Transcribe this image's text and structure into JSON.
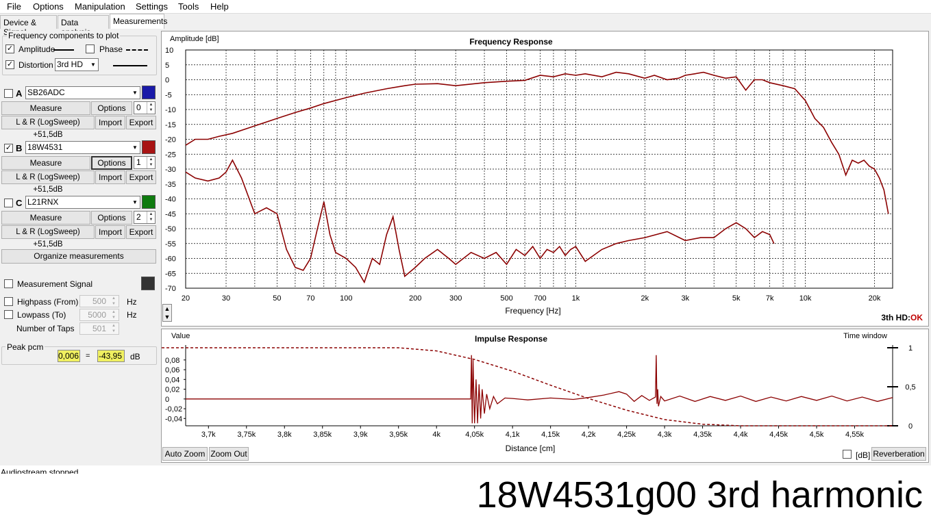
{
  "menu": [
    "File",
    "Options",
    "Manipulation",
    "Settings",
    "Tools",
    "Help"
  ],
  "tabs": [
    "Device & Signal",
    "Data analysis",
    "Measurements"
  ],
  "freq_components": {
    "title": "Frequency components to plot",
    "amplitude_label": "Amplitude",
    "amplitude_checked": "✓",
    "phase_label": "Phase",
    "distortion_label": "Distortion",
    "distortion_checked": "✓",
    "distortion_value": "3rd HD"
  },
  "measurements": [
    {
      "letter": "A",
      "checked": "",
      "name": "SB26ADC",
      "color": "#1a1aa8",
      "measure_label": "Measure",
      "options_label": "Options",
      "index": "0",
      "info": "L & R (LogSweep) +51,5dB",
      "import_label": "Import",
      "export_label": "Export"
    },
    {
      "letter": "B",
      "checked": "✓",
      "name": "18W4531",
      "color": "#a81414",
      "measure_label": "Measure",
      "options_label": "Options",
      "index": "1",
      "info": "L & R (LogSweep) +51,5dB",
      "import_label": "Import",
      "export_label": "Export"
    },
    {
      "letter": "C",
      "checked": "",
      "name": "L21RNX",
      "color": "#0e7a0e",
      "measure_label": "Measure",
      "options_label": "Options",
      "index": "2",
      "info": "L & R (LogSweep) +51,5dB",
      "import_label": "Import",
      "export_label": "Export"
    }
  ],
  "organize_label": "Organize measurements",
  "measurement_signal_label": "Measurement Signal",
  "measurement_signal_color": "#333333",
  "filters": {
    "highpass_label": "Highpass (From)",
    "highpass_value": "500",
    "highpass_unit": "Hz",
    "lowpass_label": "Lowpass (To)",
    "lowpass_value": "5000",
    "lowpass_unit": "Hz",
    "taps_label": "Number of Taps",
    "taps_value": "501"
  },
  "peak": {
    "title": "Peak pcm",
    "value": "0,006",
    "eq": "=",
    "db_value": "-43,95",
    "unit": "dB"
  },
  "status_text": "Audiostream stopped",
  "caption": "18W4531g00 3rd harmonic",
  "freq_chart": {
    "status_prefix": "3th HD:",
    "status_ok": "OK"
  },
  "impulse_chart": {
    "auto_zoom": "Auto Zoom",
    "zoom_out": "Zoom Out",
    "db_label": "[dB]",
    "reverberation": "Reverberation"
  },
  "chart_data": [
    {
      "type": "line",
      "title": "Frequency Response",
      "xlabel": "Frequency [Hz]",
      "ylabel": "Amplitude [dB]",
      "xscale": "log",
      "xlim": [
        20,
        24000
      ],
      "ylim": [
        -70,
        10
      ],
      "grid": true,
      "xticks": [
        20,
        30,
        50,
        70,
        100,
        200,
        300,
        500,
        700,
        1000,
        2000,
        3000,
        5000,
        7000,
        10000,
        20000
      ],
      "xtick_labels": [
        "20",
        "30",
        "50",
        "70",
        "100",
        "200",
        "300",
        "500",
        "700",
        "1k",
        "2k",
        "3k",
        "5k",
        "7k",
        "10k",
        "20k"
      ],
      "yticks": [
        10,
        5,
        0,
        -5,
        -10,
        -15,
        -20,
        -25,
        -30,
        -35,
        -40,
        -45,
        -50,
        -55,
        -60,
        -65,
        -70
      ],
      "color": "#8b0000",
      "series": [
        {
          "x": [
            20,
            22,
            25,
            28,
            32,
            40,
            50,
            60,
            70,
            80,
            100,
            120,
            150,
            180,
            200,
            250,
            300,
            400,
            500,
            600,
            700,
            800,
            900,
            1000,
            1100,
            1300,
            1500,
            1700,
            2000,
            2200,
            2500,
            2800,
            3000,
            3300,
            3600,
            4000,
            4500,
            5000,
            5500,
            6000,
            6500,
            7000,
            8000,
            9000,
            10000,
            11000,
            12000,
            13000,
            14000,
            15000,
            16000,
            17000,
            18000,
            19000,
            20000,
            21000,
            22000,
            23000
          ],
          "y": [
            -22,
            -20,
            -20,
            -19,
            -18,
            -15.5,
            -13,
            -11,
            -9.5,
            -8,
            -6,
            -4.5,
            -3,
            -2,
            -1.5,
            -1.3,
            -2,
            -1,
            -0.5,
            -0.2,
            1.5,
            1,
            2,
            1.5,
            2,
            1,
            2.5,
            2,
            0.5,
            1.5,
            0,
            0.5,
            1.5,
            2,
            2.5,
            1.5,
            0.5,
            1,
            -3.5,
            0,
            0,
            -1,
            -2,
            -3,
            -7,
            -13,
            -16,
            -21,
            -25,
            -32,
            -27,
            -28,
            -27,
            -29,
            -30,
            -33,
            -37,
            -45
          ]
        },
        {
          "x": [
            20,
            22,
            25,
            28,
            30,
            32,
            35,
            40,
            45,
            50,
            55,
            60,
            65,
            70,
            75,
            80,
            85,
            90,
            100,
            110,
            120,
            130,
            140,
            150,
            160,
            170,
            180,
            200,
            220,
            250,
            280,
            300,
            350,
            400,
            450,
            500,
            550,
            600,
            650,
            700,
            750,
            800,
            850,
            900,
            950,
            1000,
            1100,
            1300,
            1500,
            1700,
            2000,
            2500,
            3000,
            3500,
            4000,
            4500,
            5000,
            5500,
            6000,
            6500,
            7000,
            7300
          ],
          "y": [
            -31,
            -33,
            -34,
            -33,
            -31,
            -27,
            -33,
            -45,
            -43,
            -45,
            -57,
            -63,
            -64,
            -60,
            -50,
            -41,
            -52,
            -58,
            -60,
            -63,
            -68,
            -60,
            -62,
            -52,
            -46,
            -57,
            -66,
            -63,
            -60,
            -57,
            -60,
            -62,
            -58,
            -60,
            -58,
            -62,
            -57,
            -59,
            -56,
            -60,
            -57,
            -58,
            -56,
            -59,
            -57,
            -56,
            -61,
            -57,
            -55,
            -54,
            -53,
            -51,
            -54,
            -53,
            -53,
            -50,
            -48,
            -50,
            -53,
            -51,
            -52,
            -55
          ]
        }
      ]
    },
    {
      "type": "line",
      "title": "Impulse Response",
      "xlabel": "Distance [cm]",
      "ylabel": "Value",
      "y2label": "Time window",
      "xlim": [
        3670,
        4600
      ],
      "ylim": [
        -0.055,
        0.105
      ],
      "xticks": [
        3700,
        3750,
        3800,
        3850,
        3900,
        3950,
        4000,
        4050,
        4100,
        4150,
        4200,
        4250,
        4300,
        4350,
        4400,
        4450,
        4500,
        4550
      ],
      "xtick_labels": [
        "3,7k",
        "3,75k",
        "3,8k",
        "3,85k",
        "3,9k",
        "3,95k",
        "4k",
        "4,05k",
        "4,1k",
        "4,15k",
        "4,2k",
        "4,25k",
        "4,3k",
        "4,35k",
        "4,4k",
        "4,45k",
        "4,5k",
        "4,55k"
      ],
      "yticks": [
        0.08,
        0.06,
        0.04,
        0.02,
        0,
        -0.02,
        -0.04
      ],
      "ytick_labels": [
        "0,08",
        "0,06",
        "0,04",
        "0,02",
        "0",
        "-0,02",
        "-0,04"
      ],
      "y2ticks": [
        1,
        0.5,
        0
      ],
      "y2tick_labels": [
        "1",
        "0,5",
        "0"
      ],
      "color": "#8b0000",
      "series": [
        {
          "x": [
            3670,
            4045,
            4046,
            4047,
            4048,
            4050,
            4052,
            4054,
            4056,
            4058,
            4060,
            4063,
            4066,
            4070,
            4075,
            4080,
            4090,
            4100,
            4120,
            4150,
            4180,
            4200,
            4220,
            4240,
            4250,
            4260,
            4270,
            4280,
            4288,
            4289,
            4290,
            4291,
            4292,
            4295,
            4300,
            4320,
            4340,
            4360,
            4380,
            4400,
            4420,
            4440,
            4460,
            4480,
            4500,
            4520,
            4540,
            4560,
            4580,
            4600
          ],
          "y": [
            0,
            0,
            0.09,
            -0.05,
            0.08,
            -0.05,
            0.04,
            -0.05,
            0.03,
            -0.04,
            0.02,
            -0.03,
            0.01,
            -0.02,
            0.005,
            -0.01,
            0.002,
            0.001,
            -0.002,
            0.002,
            -0.001,
            0.003,
            0.008,
            0.015,
            0.01,
            -0.005,
            0.007,
            -0.003,
            0.004,
            0.09,
            -0.01,
            0.02,
            -0.015,
            0.005,
            -0.004,
            0.006,
            -0.005,
            0.005,
            -0.003,
            0.006,
            -0.005,
            0.004,
            -0.004,
            0.005,
            -0.003,
            0.006,
            -0.004,
            0.004,
            -0.005,
            0.003
          ]
        },
        {
          "name_shown": false,
          "x": [
            3670,
            3950,
            4000,
            4050,
            4100,
            4150,
            4200,
            4250,
            4300,
            4350,
            4400,
            4600
          ],
          "y2": [
            1,
            1,
            0.96,
            0.85,
            0.7,
            0.52,
            0.35,
            0.2,
            0.08,
            0.02,
            0,
            0
          ]
        }
      ]
    }
  ]
}
